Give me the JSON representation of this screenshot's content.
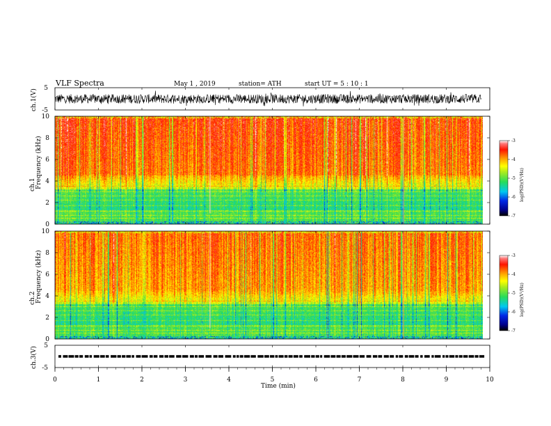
{
  "header": {
    "title": "VLF  Spectra",
    "date": "May 1  , 2019",
    "station": "station= ATH",
    "start": "start  UT  =    5  : 10 : 1"
  },
  "chart_data": [
    {
      "type": "line",
      "name": "ch1-waveform",
      "ylabel": "ch.1(V)",
      "ylim": [
        -5,
        5
      ],
      "yticks": [
        "5",
        "-5"
      ],
      "xlim": [
        0,
        10
      ],
      "data_end_min": 9.8,
      "envelope_note": "noisy signal roughly within -2.5 to +2.5 V"
    },
    {
      "type": "heatmap",
      "name": "ch1-spectrogram",
      "ylabel": "Frequency  (kHz)",
      "channel_label": "ch.1",
      "ylim": [
        0,
        10
      ],
      "yticks": [
        "0",
        "2",
        "4",
        "6",
        "8",
        "10"
      ],
      "xlim": [
        0,
        10
      ],
      "data_end_min": 9.8,
      "colorbar": {
        "label": "log(PSD)(V²/Hz)",
        "range": [
          -7,
          -3
        ],
        "ticks": [
          "-3",
          "-4",
          "-5",
          "-6",
          "-7"
        ]
      }
    },
    {
      "type": "heatmap",
      "name": "ch2-spectrogram",
      "ylabel": "Frequency  (kHz)",
      "channel_label": "ch.2",
      "ylim": [
        0,
        10
      ],
      "yticks": [
        "0",
        "2",
        "4",
        "6",
        "8",
        "10"
      ],
      "xlim": [
        0,
        10
      ],
      "data_end_min": 9.8,
      "colorbar": {
        "label": "log(PSD)(V²/Hz)",
        "range": [
          -7,
          -3
        ],
        "ticks": [
          "-3",
          "-4",
          "-5",
          "-6",
          "-7"
        ]
      }
    },
    {
      "type": "line",
      "name": "ch3-waveform",
      "ylabel": "ch.3(V)",
      "ylim": [
        -5,
        5
      ],
      "yticks": [
        "5",
        "-5"
      ],
      "xlim": [
        0,
        10
      ],
      "data_end_min": 9.8,
      "level_v": 0.0
    }
  ],
  "xaxis": {
    "label": "Time  (min)",
    "ticks": [
      "0",
      "1",
      "2",
      "3",
      "4",
      "5",
      "6",
      "7",
      "8",
      "9",
      "10"
    ]
  },
  "colors": {
    "red": "#ff1a00",
    "orange": "#ffa500",
    "yellow": "#ffff00",
    "green": "#33dd44",
    "cyan": "#00e5e5",
    "blue": "#0033dd",
    "black": "#000000"
  }
}
